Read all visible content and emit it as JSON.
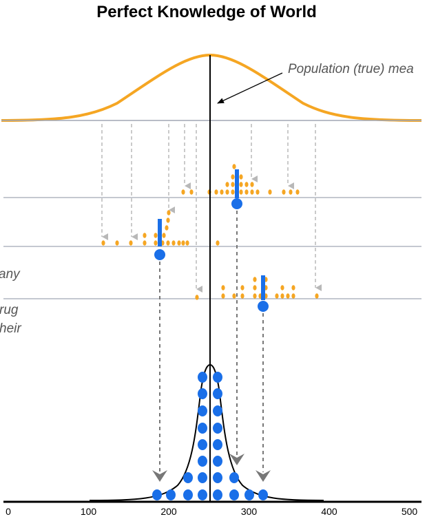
{
  "title": "Perfect Knowledge of World",
  "labels": {
    "population_mean": "Population (true) mea",
    "sample2_fragment": "any",
    "sample3_fragment_1": "rug",
    "sample3_fragment_2": "heir"
  },
  "axis": {
    "ticks": [
      {
        "value": 0,
        "label": "0"
      },
      {
        "value": 100,
        "label": "100"
      },
      {
        "value": 200,
        "label": "200"
      },
      {
        "value": 300,
        "label": "300"
      },
      {
        "value": 400,
        "label": "400"
      },
      {
        "value": 500,
        "label": "500"
      }
    ]
  },
  "colors": {
    "population_curve": "#f5a623",
    "sample_dots": "#f5a623",
    "mean_marker": "#1a6fe8",
    "sampling_dots": "#1a6fe8",
    "baseline": "#a0a6b4",
    "arrow_light": "#b8b8b8",
    "arrow_dark": "#777777",
    "axis": "#000000"
  }
}
